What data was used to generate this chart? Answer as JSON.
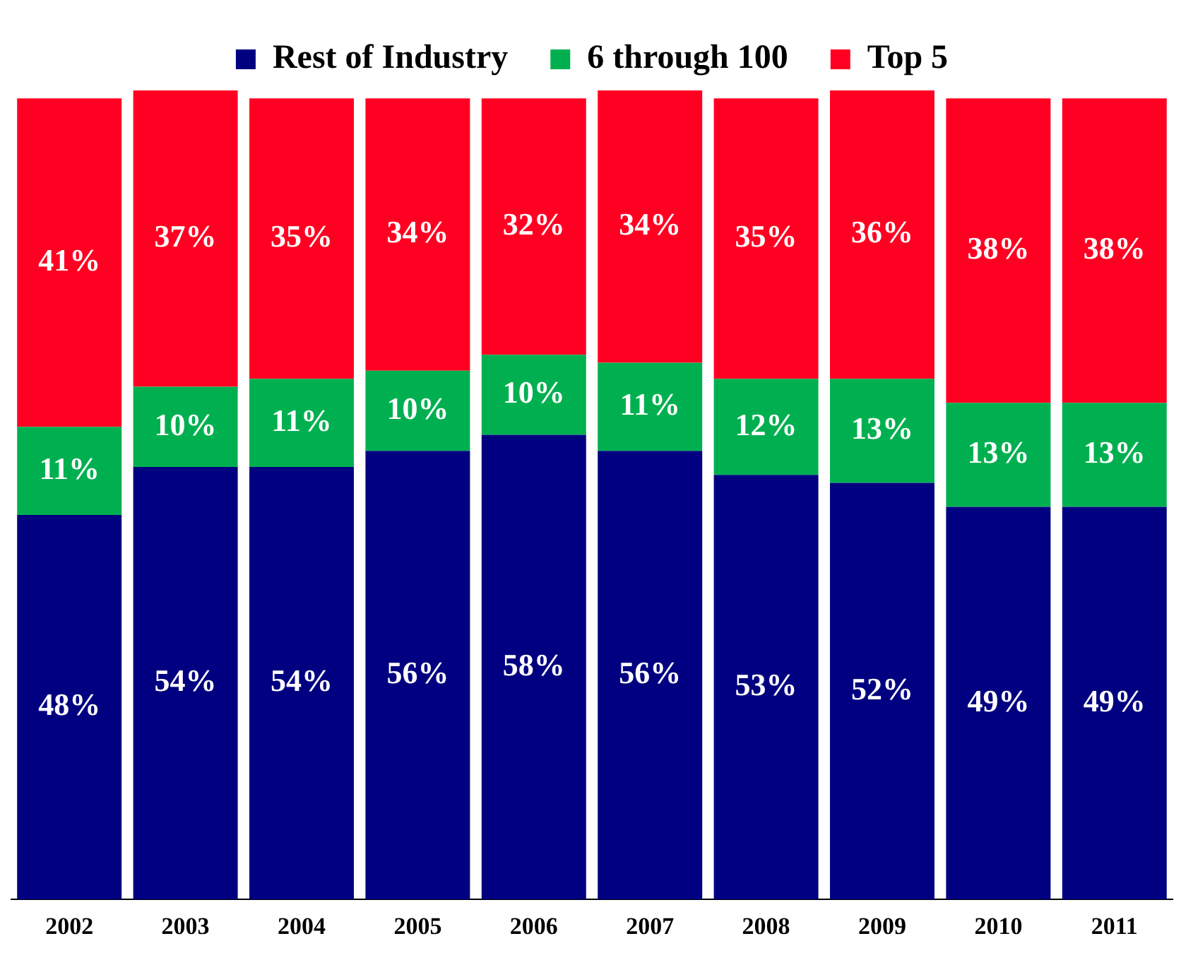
{
  "chart_data": {
    "type": "bar",
    "stacked": true,
    "legend": "top",
    "categories": [
      "2002",
      "2003",
      "2004",
      "2005",
      "2006",
      "2007",
      "2008",
      "2009",
      "2010",
      "2011"
    ],
    "series": [
      {
        "name": "Rest of Industry",
        "color": "#000080",
        "values": [
          48,
          54,
          54,
          56,
          58,
          56,
          53,
          52,
          49,
          49
        ],
        "value_labels": [
          "48%",
          "54%",
          "54%",
          "56%",
          "58%",
          "56%",
          "53%",
          "52%",
          "49%",
          "49%"
        ]
      },
      {
        "name": "6 through 100",
        "color": "#00b050",
        "values": [
          11,
          10,
          11,
          10,
          10,
          11,
          12,
          13,
          13,
          13
        ],
        "value_labels": [
          "11%",
          "10%",
          "11%",
          "10%",
          "10%",
          "11%",
          "12%",
          "13%",
          "13%",
          "13%"
        ]
      },
      {
        "name": "Top 5",
        "color": "#ff0022",
        "values": [
          41,
          37,
          35,
          34,
          32,
          34,
          35,
          36,
          38,
          38
        ],
        "value_labels": [
          "41%",
          "37%",
          "35%",
          "34%",
          "32%",
          "34%",
          "35%",
          "36%",
          "38%",
          "38%"
        ]
      }
    ]
  }
}
